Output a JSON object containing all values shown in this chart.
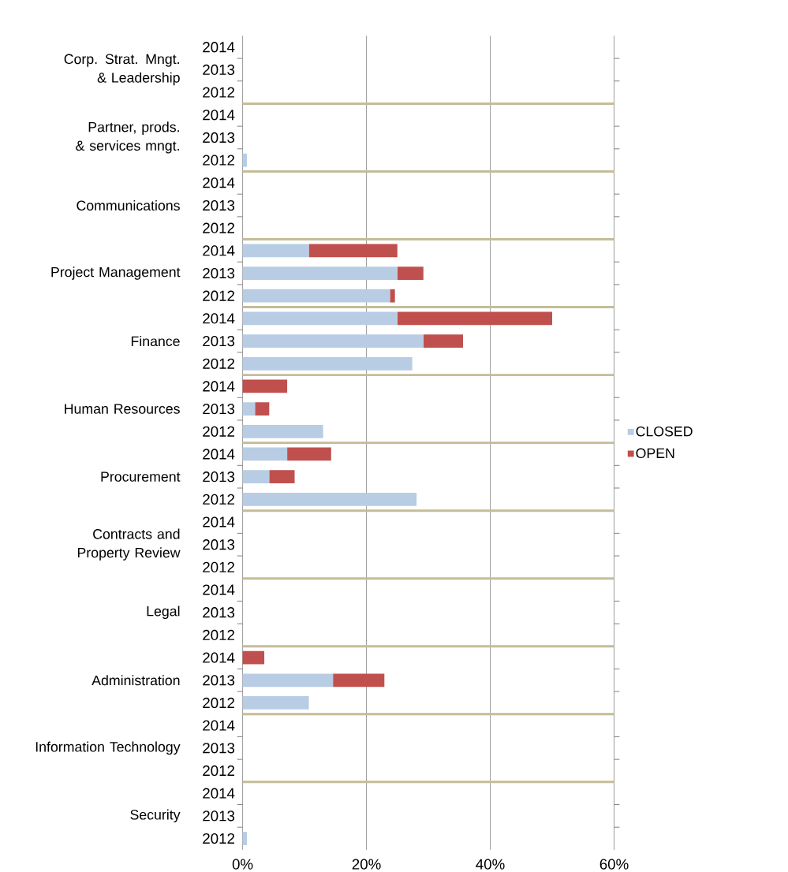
{
  "chart_data": {
    "type": "bar",
    "orientation": "horizontal",
    "stacked": true,
    "categories": [
      "2014",
      "2013",
      "2012",
      "2014",
      "2013",
      "2012",
      "2014",
      "2013",
      "2012",
      "2014",
      "2013",
      "2012",
      "2014",
      "2013",
      "2012",
      "2014",
      "2013",
      "2012",
      "2014",
      "2013",
      "2012",
      "2014",
      "2013",
      "2012",
      "2014",
      "2013",
      "2012",
      "2014",
      "2013",
      "2012",
      "2014",
      "2013",
      "2012",
      "2014",
      "2013",
      "2012"
    ],
    "series": [
      {
        "name": "CLOSED",
        "color": "#b8cce4",
        "values": [
          null,
          null,
          null,
          null,
          null,
          0.7,
          null,
          null,
          null,
          10.7,
          25,
          23.8,
          25,
          29.2,
          27.4,
          null,
          2.0,
          13.0,
          7.2,
          4.3,
          28.1,
          null,
          null,
          null,
          null,
          null,
          null,
          null,
          14.6,
          10.7,
          null,
          null,
          null,
          null,
          null,
          0.7
        ]
      },
      {
        "name": "OPEN",
        "color": "#c0504d",
        "values": [
          null,
          null,
          null,
          null,
          null,
          null,
          null,
          null,
          null,
          14.3,
          4.2,
          0.8,
          25,
          6.4,
          null,
          7.2,
          2.3,
          null,
          7.1,
          4.1,
          null,
          null,
          null,
          null,
          null,
          null,
          null,
          3.5,
          8.3,
          null,
          null,
          null,
          null,
          null,
          null,
          null
        ]
      }
    ],
    "annotations": [
      "Corp. Strat. Mngt. & Leadership",
      "Partner, prods. & services mngt.",
      "Communications",
      "Project Management",
      "Finance",
      "Human Resources",
      "Procurement",
      "Contracts and Property Review",
      "Legal",
      "Administration",
      "Information Technology",
      "Security"
    ],
    "xlim": [
      0,
      60
    ],
    "xticks": [
      {
        "value": 0,
        "label": "0%"
      },
      {
        "value": 20,
        "label": "20%"
      },
      {
        "value": 40,
        "label": "40%"
      },
      {
        "value": 60,
        "label": "60%"
      }
    ],
    "grid": "x",
    "legend": "right"
  }
}
